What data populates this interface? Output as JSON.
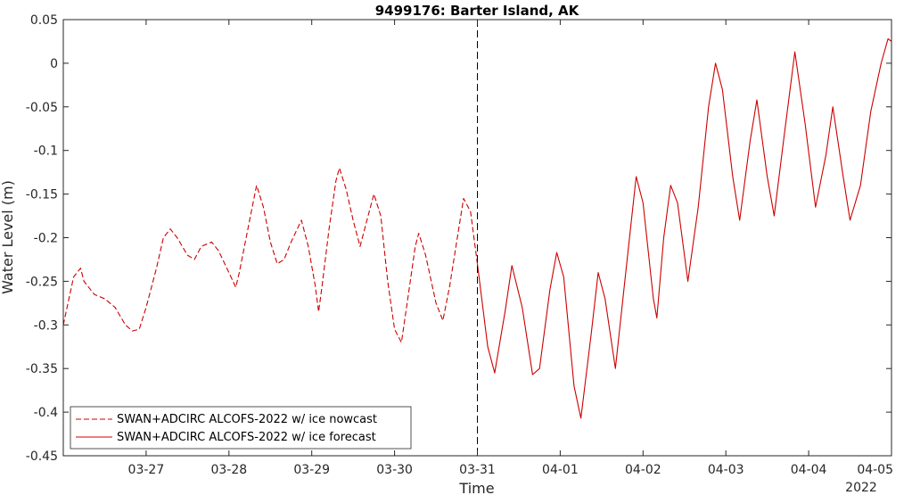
{
  "chart_data": {
    "type": "line",
    "title": "9499176: Barter Island, AK",
    "xlabel": "Time",
    "ylabel": "Water Level (m)",
    "x_year_label": "2022",
    "xlim": [
      "2022-03-26 00:00",
      "2022-04-05 00:00"
    ],
    "ylim": [
      -0.45,
      0.05
    ],
    "yticks": [
      -0.45,
      -0.4,
      -0.35,
      -0.3,
      -0.25,
      -0.2,
      -0.15,
      -0.1,
      -0.05,
      0,
      0.05
    ],
    "ytick_labels": [
      "-0.45",
      "-0.4",
      "-0.35",
      "-0.3",
      "-0.25",
      "-0.2",
      "-0.15",
      "-0.1",
      "-0.05",
      "0",
      "0.05"
    ],
    "xticks": [
      "2022-03-27",
      "2022-03-28",
      "2022-03-29",
      "2022-03-30",
      "2022-03-31",
      "2022-04-01",
      "2022-04-02",
      "2022-04-03",
      "2022-04-04",
      "2022-04-05"
    ],
    "xtick_labels": [
      "03-27",
      "03-28",
      "03-29",
      "03-30",
      "03-31",
      "04-01",
      "04-02",
      "04-03",
      "04-04",
      "04-05"
    ],
    "vline_x": "2022-03-31 00:00",
    "grid": false,
    "legend_position": "bottom-left",
    "series": [
      {
        "name": "SWAN+ADCIRC ALCOFS-2022 w/ ice nowcast",
        "color": "#cc0000",
        "style": "dashed",
        "points": [
          [
            "2022-03-26 00:00",
            -0.3
          ],
          [
            "2022-03-26 03:00",
            -0.245
          ],
          [
            "2022-03-26 05:00",
            -0.235
          ],
          [
            "2022-03-26 06:00",
            -0.25
          ],
          [
            "2022-03-26 09:00",
            -0.265
          ],
          [
            "2022-03-26 12:00",
            -0.27
          ],
          [
            "2022-03-26 15:00",
            -0.28
          ],
          [
            "2022-03-26 18:00",
            -0.3
          ],
          [
            "2022-03-26 20:00",
            -0.307
          ],
          [
            "2022-03-26 22:00",
            -0.305
          ],
          [
            "2022-03-27 00:00",
            -0.28
          ],
          [
            "2022-03-27 03:00",
            -0.235
          ],
          [
            "2022-03-27 05:00",
            -0.2
          ],
          [
            "2022-03-27 07:00",
            -0.19
          ],
          [
            "2022-03-27 09:00",
            -0.2
          ],
          [
            "2022-03-27 12:00",
            -0.22
          ],
          [
            "2022-03-27 14:00",
            -0.225
          ],
          [
            "2022-03-27 16:00",
            -0.21
          ],
          [
            "2022-03-27 19:00",
            -0.205
          ],
          [
            "2022-03-27 21:00",
            -0.215
          ],
          [
            "2022-03-28 00:00",
            -0.24
          ],
          [
            "2022-03-28 02:00",
            -0.257
          ],
          [
            "2022-03-28 03:00",
            -0.24
          ],
          [
            "2022-03-28 06:00",
            -0.18
          ],
          [
            "2022-03-28 08:00",
            -0.14
          ],
          [
            "2022-03-28 10:00",
            -0.165
          ],
          [
            "2022-03-28 12:00",
            -0.205
          ],
          [
            "2022-03-28 14:00",
            -0.23
          ],
          [
            "2022-03-28 16:00",
            -0.225
          ],
          [
            "2022-03-28 18:00",
            -0.205
          ],
          [
            "2022-03-28 21:00",
            -0.18
          ],
          [
            "2022-03-28 23:00",
            -0.21
          ],
          [
            "2022-03-29 01:00",
            -0.255
          ],
          [
            "2022-03-29 02:00",
            -0.285
          ],
          [
            "2022-03-29 03:00",
            -0.255
          ],
          [
            "2022-03-29 05:00",
            -0.19
          ],
          [
            "2022-03-29 07:00",
            -0.135
          ],
          [
            "2022-03-29 08:00",
            -0.12
          ],
          [
            "2022-03-29 10:00",
            -0.145
          ],
          [
            "2022-03-29 12:00",
            -0.18
          ],
          [
            "2022-03-29 14:00",
            -0.21
          ],
          [
            "2022-03-29 16:00",
            -0.18
          ],
          [
            "2022-03-29 18:00",
            -0.15
          ],
          [
            "2022-03-29 20:00",
            -0.175
          ],
          [
            "2022-03-29 22:00",
            -0.25
          ],
          [
            "2022-03-30 00:00",
            -0.305
          ],
          [
            "2022-03-30 02:00",
            -0.32
          ],
          [
            "2022-03-30 04:00",
            -0.265
          ],
          [
            "2022-03-30 06:00",
            -0.21
          ],
          [
            "2022-03-30 07:00",
            -0.195
          ],
          [
            "2022-03-30 09:00",
            -0.22
          ],
          [
            "2022-03-30 12:00",
            -0.275
          ],
          [
            "2022-03-30 14:00",
            -0.295
          ],
          [
            "2022-03-30 16:00",
            -0.255
          ],
          [
            "2022-03-30 19:00",
            -0.18
          ],
          [
            "2022-03-30 20:00",
            -0.155
          ],
          [
            "2022-03-30 22:00",
            -0.17
          ],
          [
            "2022-03-31 00:00",
            -0.23
          ]
        ]
      },
      {
        "name": "SWAN+ADCIRC ALCOFS-2022 w/ ice forecast",
        "color": "#cc0000",
        "style": "solid",
        "points": [
          [
            "2022-03-31 00:00",
            -0.23
          ],
          [
            "2022-03-31 03:00",
            -0.325
          ],
          [
            "2022-03-31 05:00",
            -0.355
          ],
          [
            "2022-03-31 08:00",
            -0.285
          ],
          [
            "2022-03-31 10:00",
            -0.232
          ],
          [
            "2022-03-31 13:00",
            -0.28
          ],
          [
            "2022-03-31 16:00",
            -0.357
          ],
          [
            "2022-03-31 18:00",
            -0.35
          ],
          [
            "2022-03-31 21:00",
            -0.26
          ],
          [
            "2022-03-31 23:00",
            -0.217
          ],
          [
            "2022-04-01 01:00",
            -0.245
          ],
          [
            "2022-04-01 04:00",
            -0.37
          ],
          [
            "2022-04-01 06:00",
            -0.407
          ],
          [
            "2022-04-01 09:00",
            -0.31
          ],
          [
            "2022-04-01 11:00",
            -0.24
          ],
          [
            "2022-04-01 13:00",
            -0.27
          ],
          [
            "2022-04-01 16:00",
            -0.35
          ],
          [
            "2022-04-01 19:00",
            -0.24
          ],
          [
            "2022-04-01 22:00",
            -0.13
          ],
          [
            "2022-04-02 00:00",
            -0.16
          ],
          [
            "2022-04-02 03:00",
            -0.27
          ],
          [
            "2022-04-02 04:00",
            -0.292
          ],
          [
            "2022-04-02 06:00",
            -0.2
          ],
          [
            "2022-04-02 08:00",
            -0.14
          ],
          [
            "2022-04-02 10:00",
            -0.16
          ],
          [
            "2022-04-02 13:00",
            -0.25
          ],
          [
            "2022-04-02 16:00",
            -0.165
          ],
          [
            "2022-04-02 19:00",
            -0.05
          ],
          [
            "2022-04-02 21:00",
            0.0
          ],
          [
            "2022-04-02 23:00",
            -0.03
          ],
          [
            "2022-04-03 02:00",
            -0.13
          ],
          [
            "2022-04-03 04:00",
            -0.18
          ],
          [
            "2022-04-03 07:00",
            -0.09
          ],
          [
            "2022-04-03 09:00",
            -0.042
          ],
          [
            "2022-04-03 12:00",
            -0.13
          ],
          [
            "2022-04-03 14:00",
            -0.175
          ],
          [
            "2022-04-03 17:00",
            -0.08
          ],
          [
            "2022-04-03 20:00",
            0.013
          ],
          [
            "2022-04-03 23:00",
            -0.07
          ],
          [
            "2022-04-04 02:00",
            -0.165
          ],
          [
            "2022-04-04 05:00",
            -0.105
          ],
          [
            "2022-04-04 07:00",
            -0.05
          ],
          [
            "2022-04-04 10:00",
            -0.13
          ],
          [
            "2022-04-04 12:00",
            -0.18
          ],
          [
            "2022-04-04 15:00",
            -0.14
          ],
          [
            "2022-04-04 18:00",
            -0.055
          ],
          [
            "2022-04-04 21:00",
            0.0
          ],
          [
            "2022-04-04 23:00",
            0.028
          ],
          [
            "2022-04-05 00:00",
            0.025
          ]
        ]
      }
    ]
  }
}
